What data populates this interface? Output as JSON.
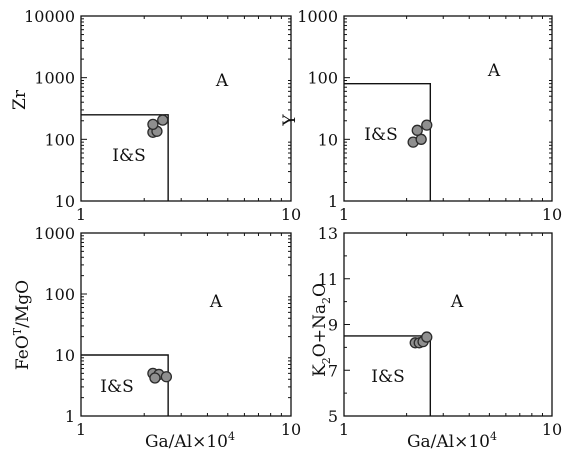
{
  "chart_data": [
    {
      "type": "scatter",
      "x_scale": "log",
      "y_scale": "log",
      "xlim": [
        1,
        10
      ],
      "ylim": [
        10,
        10000
      ],
      "x_ticks": [
        "1",
        "10"
      ],
      "y_ticks": [
        "10",
        "100",
        "1000",
        "10000"
      ],
      "xlabel": "",
      "ylabel": "Zr",
      "field_labels": [
        "I&S",
        "A"
      ],
      "field_boundary": {
        "x_max": 2.6,
        "y_max": 250
      },
      "points": [
        {
          "x": 2.2,
          "y": 130
        },
        {
          "x": 2.3,
          "y": 135
        },
        {
          "x": 2.2,
          "y": 175
        },
        {
          "x": 2.45,
          "y": 205
        }
      ]
    },
    {
      "type": "scatter",
      "x_scale": "log",
      "y_scale": "log",
      "xlim": [
        1,
        10
      ],
      "ylim": [
        1,
        1000
      ],
      "x_ticks": [
        "1",
        "10"
      ],
      "y_ticks": [
        "1",
        "10",
        "100",
        "1000"
      ],
      "xlabel": "",
      "ylabel": "Y",
      "field_labels": [
        "I&S",
        "A"
      ],
      "field_boundary": {
        "x_max": 2.6,
        "y_max": 80
      },
      "points": [
        {
          "x": 2.15,
          "y": 9
        },
        {
          "x": 2.35,
          "y": 10
        },
        {
          "x": 2.25,
          "y": 14
        },
        {
          "x": 2.5,
          "y": 17
        }
      ]
    },
    {
      "type": "scatter",
      "x_scale": "log",
      "y_scale": "log",
      "xlim": [
        1,
        10
      ],
      "ylim": [
        1,
        1000
      ],
      "x_ticks": [
        "1",
        "10"
      ],
      "y_ticks": [
        "1",
        "10",
        "100",
        "1000"
      ],
      "xlabel": "Ga/Al×10⁴",
      "ylabel": "FeOᵀ/MgO",
      "ylabel_main": "FeO",
      "ylabel_sup": "T",
      "ylabel_rest": "/MgO",
      "field_labels": [
        "I&S",
        "A"
      ],
      "field_boundary": {
        "x_max": 2.6,
        "y_max": 10
      },
      "points": [
        {
          "x": 2.2,
          "y": 5
        },
        {
          "x": 2.35,
          "y": 4.8
        },
        {
          "x": 2.55,
          "y": 4.4
        },
        {
          "x": 2.25,
          "y": 4.2
        }
      ]
    },
    {
      "type": "scatter",
      "x_scale": "log",
      "y_scale": "linear",
      "xlim": [
        1,
        10
      ],
      "ylim": [
        5,
        13
      ],
      "x_ticks": [
        "1",
        "10"
      ],
      "y_ticks": [
        "5",
        "7",
        "9",
        "11",
        "13"
      ],
      "xlabel": "Ga/Al×10⁴",
      "ylabel": "K₂O+Na₂O",
      "ylabel_parts": [
        "K",
        "2",
        "O+Na",
        "2",
        "O"
      ],
      "field_labels": [
        "I&S",
        "A"
      ],
      "field_boundary": {
        "x_max": 2.6,
        "y_max": 8.5
      },
      "points": [
        {
          "x": 2.2,
          "y": 8.2
        },
        {
          "x": 2.3,
          "y": 8.2
        },
        {
          "x": 2.4,
          "y": 8.25
        },
        {
          "x": 2.5,
          "y": 8.45
        }
      ]
    }
  ]
}
